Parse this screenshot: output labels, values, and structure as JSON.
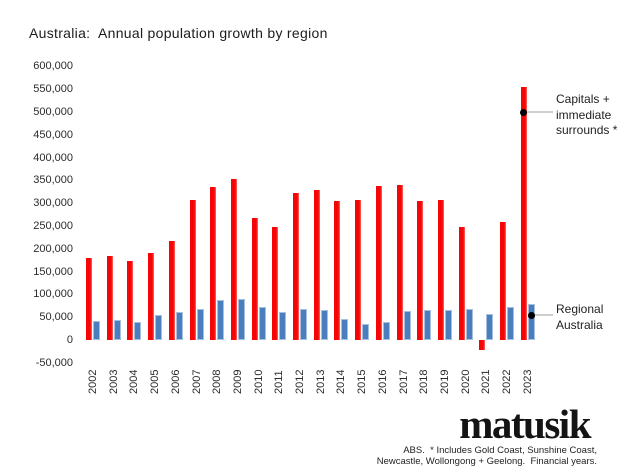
{
  "title": "Australia:  Annual population growth by region",
  "chart_data": {
    "type": "bar",
    "title": "Australia:  Annual population growth by region",
    "categories": [
      "2002",
      "2003",
      "2004",
      "2005",
      "2006",
      "2007",
      "2008",
      "2009",
      "2010",
      "2011",
      "2012",
      "2013",
      "2014",
      "2015",
      "2016",
      "2017",
      "2018",
      "2019",
      "2020",
      "2021",
      "2022",
      "2023"
    ],
    "series": [
      {
        "name": "Capitals + immediate surrounds *",
        "color": "#f50505",
        "values": [
          180000,
          185000,
          173000,
          191000,
          217000,
          308000,
          335000,
          352000,
          267000,
          248000,
          323000,
          329000,
          305000,
          307000,
          337000,
          339000,
          305000,
          306000,
          248000,
          -22000,
          259000,
          555000
        ]
      },
      {
        "name": "Regional Australia",
        "color": "#4a7ebc",
        "values": [
          42000,
          44000,
          40000,
          55000,
          61000,
          69000,
          88000,
          90000,
          73000,
          62000,
          69000,
          66000,
          45000,
          34000,
          39000,
          64000,
          66000,
          66000,
          67000,
          58000,
          73000,
          78000
        ]
      }
    ],
    "xlabel": "",
    "ylabel": "",
    "ylim": [
      -50000,
      600000
    ],
    "grid": false,
    "legend_position": "right-annotations",
    "y_ticks": [
      600000,
      550000,
      500000,
      450000,
      400000,
      350000,
      300000,
      250000,
      200000,
      150000,
      100000,
      50000,
      0,
      -50000
    ],
    "y_tick_labels": [
      "600,000",
      "550,000",
      "500,000",
      "450,000",
      "400,000",
      "350,000",
      "300,000",
      "250,000",
      "200,000",
      "150,000",
      "100,000",
      "50,000",
      "0",
      "-50,000"
    ]
  },
  "annotations": {
    "capitals": {
      "lines": [
        "Capitals +",
        "immediate",
        "surrounds *"
      ]
    },
    "regional": {
      "lines": [
        "Regional",
        "Australia"
      ]
    }
  },
  "footer": {
    "logo": "matusik",
    "source_line1": "ABS.  * Includes Gold Coast, Sunshine Coast,",
    "source_line2": "Newcastle, Wollongong + Geelong.  Financial years."
  },
  "colors": {
    "capitals_bar": "#f50505",
    "regional_bar_fill": "#4a7ebc",
    "regional_bar_border": "#a8c0df",
    "leader_line": "#cfcfcf",
    "annotation_dot": "#000000",
    "text": "#1c1c1c"
  }
}
